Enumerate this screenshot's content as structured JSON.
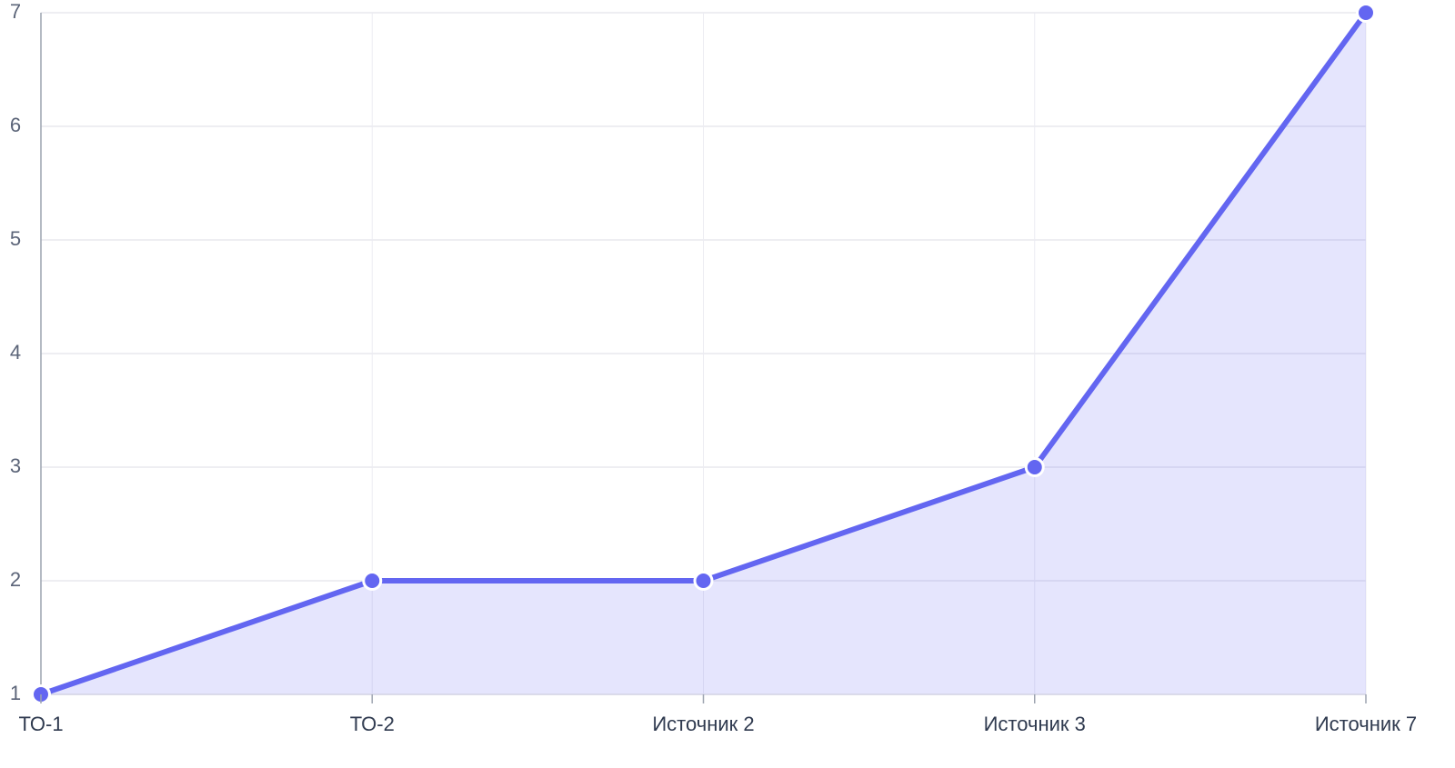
{
  "chart_data": {
    "type": "area",
    "categories": [
      "ТО-1",
      "ТО-2",
      "Источник 2",
      "Источник 3",
      "Источник 7"
    ],
    "values": [
      1,
      2,
      2,
      3,
      7
    ],
    "color": "#6366f1",
    "ylim": [
      1,
      7
    ],
    "yticks": [
      1,
      2,
      3,
      4,
      5,
      6,
      7
    ],
    "grid": true
  }
}
